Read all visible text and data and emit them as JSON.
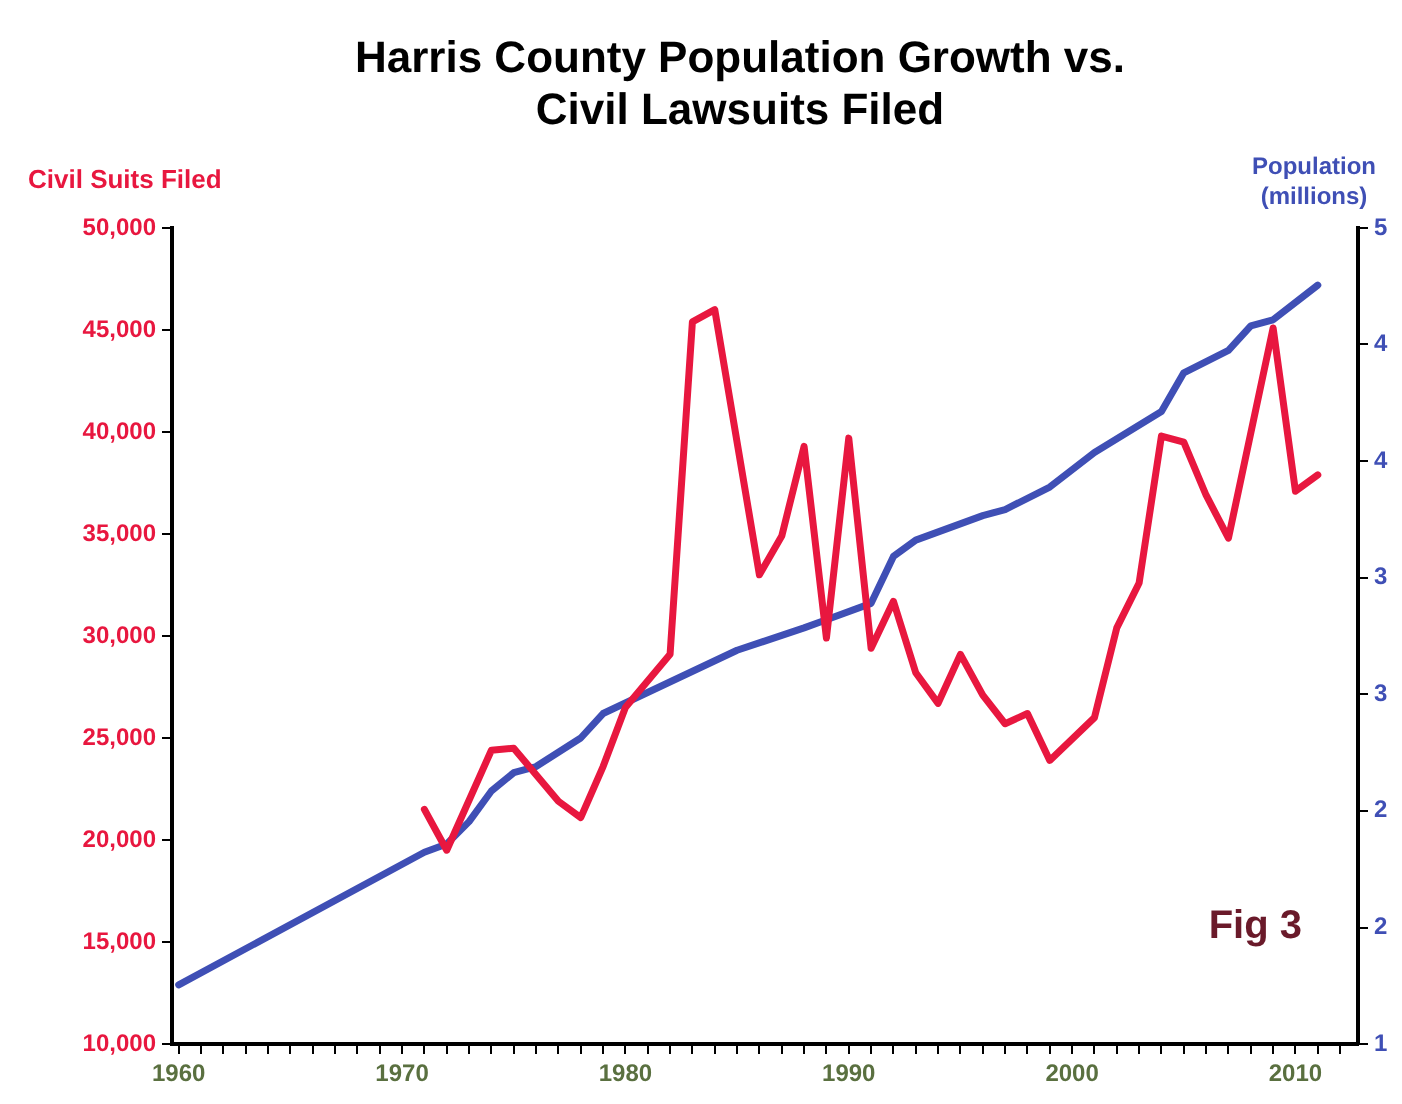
{
  "chart_data": {
    "type": "line",
    "title": "Harris County Population Growth vs. Civil Lawsuits Filed",
    "ylabel": "Civil Suits Filed",
    "y2label": "Population (millions)",
    "annotations": [
      "Fig 3"
    ],
    "xlim": [
      1959.7,
      2012.8
    ],
    "xticks": [
      1960,
      {
        "value": 1961,
        "label": null
      },
      {
        "value": 1962,
        "label": null
      },
      {
        "value": 1963,
        "label": null
      },
      {
        "value": 1964,
        "label": null
      },
      {
        "value": 1965,
        "label": null
      },
      {
        "value": 1966,
        "label": null
      },
      {
        "value": 1967,
        "label": null
      },
      {
        "value": 1968,
        "label": null
      },
      {
        "value": 1969,
        "label": null
      },
      1970,
      {
        "value": 1971,
        "label": null
      },
      {
        "value": 1972,
        "label": null
      },
      {
        "value": 1973,
        "label": null
      },
      {
        "value": 1974,
        "label": null
      },
      {
        "value": 1975,
        "label": null
      },
      {
        "value": 1976,
        "label": null
      },
      {
        "value": 1977,
        "label": null
      },
      {
        "value": 1978,
        "label": null
      },
      {
        "value": 1979,
        "label": null
      },
      1980,
      {
        "value": 1981,
        "label": null
      },
      {
        "value": 1982,
        "label": null
      },
      {
        "value": 1983,
        "label": null
      },
      {
        "value": 1984,
        "label": null
      },
      {
        "value": 1985,
        "label": null
      },
      {
        "value": 1986,
        "label": null
      },
      {
        "value": 1987,
        "label": null
      },
      {
        "value": 1988,
        "label": null
      },
      {
        "value": 1989,
        "label": null
      },
      1990,
      {
        "value": 1991,
        "label": null
      },
      {
        "value": 1992,
        "label": null
      },
      {
        "value": 1993,
        "label": null
      },
      {
        "value": 1994,
        "label": null
      },
      {
        "value": 1995,
        "label": null
      },
      {
        "value": 1996,
        "label": null
      },
      {
        "value": 1997,
        "label": null
      },
      {
        "value": 1998,
        "label": null
      },
      {
        "value": 1999,
        "label": null
      },
      2000,
      {
        "value": 2001,
        "label": null
      },
      {
        "value": 2002,
        "label": null
      },
      {
        "value": 2003,
        "label": null
      },
      {
        "value": 2004,
        "label": null
      },
      {
        "value": 2005,
        "label": null
      },
      {
        "value": 2006,
        "label": null
      },
      {
        "value": 2007,
        "label": null
      },
      {
        "value": 2008,
        "label": null
      },
      {
        "value": 2009,
        "label": null
      },
      2010,
      {
        "value": 2011,
        "label": null
      },
      {
        "value": 2012,
        "label": null
      }
    ],
    "ylim": [
      10000,
      50000
    ],
    "yticks": [
      {
        "value": 10000,
        "label": "10,000"
      },
      {
        "value": 15000,
        "label": "15,000"
      },
      {
        "value": 20000,
        "label": "20,000"
      },
      {
        "value": 25000,
        "label": "25,000"
      },
      {
        "value": 30000,
        "label": "30,000"
      },
      {
        "value": 35000,
        "label": "35,000"
      },
      {
        "value": 40000,
        "label": "40,000"
      },
      {
        "value": 45000,
        "label": "45,000"
      },
      {
        "value": 50000,
        "label": "50,000"
      }
    ],
    "y2lim": [
      1,
      5
    ],
    "y2ticks": [
      1,
      {
        "value": 1.571,
        "label": "2"
      },
      {
        "value": 2.143,
        "label": "2"
      },
      {
        "value": 2.714,
        "label": "3"
      },
      {
        "value": 3.286,
        "label": "3"
      },
      {
        "value": 3.857,
        "label": "4"
      },
      {
        "value": 4.429,
        "label": "4"
      },
      5
    ],
    "grid": false,
    "legend": false,
    "marker": "none",
    "line_style": "solid",
    "series": [
      {
        "color": "#e8173f",
        "x": [
          1971,
          1972,
          1974,
          1975,
          1977,
          1978,
          1979,
          1980,
          1982,
          1983,
          1984,
          1986,
          1987,
          1988,
          1989,
          1990,
          1991,
          1992,
          1993,
          1994,
          1995,
          1996,
          1997,
          1998,
          1999,
          2001,
          2002,
          2003,
          2004,
          2005,
          2006,
          2007,
          2009,
          2010,
          2011
        ],
        "values": [
          21500,
          19500,
          24400,
          24500,
          21900,
          21100,
          23600,
          26500,
          29100,
          45400,
          46000,
          33000,
          34900,
          39300,
          29900,
          39700,
          29400,
          31700,
          28200,
          26700,
          29100,
          27100,
          25700,
          26200,
          23900,
          26000,
          30400,
          32600,
          39800,
          39500,
          36900,
          34800,
          45100,
          37100,
          37900
        ]
      },
      {
        "color": "#3f4fb5",
        "axis": "y2",
        "x": [
          1960,
          1971,
          1972,
          1973,
          1974,
          1975,
          1976,
          1977,
          1978,
          1979,
          1985,
          1988,
          1989,
          1991,
          1992,
          1993,
          1996,
          1997,
          1999,
          2001,
          2004,
          2005,
          2007,
          2008,
          2009,
          2011
        ],
        "values": [
          1.29,
          1.94,
          1.98,
          2.09,
          2.24,
          2.33,
          2.36,
          2.43,
          2.5,
          2.62,
          2.93,
          3.04,
          3.08,
          3.16,
          3.39,
          3.47,
          3.59,
          3.62,
          3.73,
          3.9,
          4.1,
          4.29,
          4.4,
          4.52,
          4.55,
          4.72
        ]
      }
    ]
  }
}
